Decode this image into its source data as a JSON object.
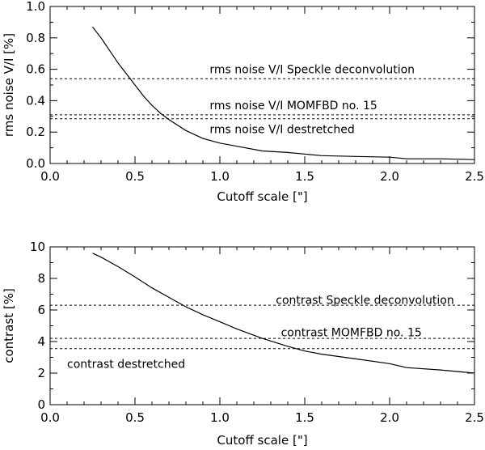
{
  "chart_data": [
    {
      "type": "line",
      "xlabel": "Cutoff scale [\"]",
      "ylabel": "rms noise V/I [%]",
      "xlim": [
        0.0,
        2.5
      ],
      "ylim": [
        0.0,
        1.0
      ],
      "xticks": [
        "0.0",
        "0.5",
        "1.0",
        "1.5",
        "2.0",
        "2.5"
      ],
      "yticks": [
        "0.0",
        "0.2",
        "0.4",
        "0.6",
        "0.8",
        "1.0"
      ],
      "series": [
        {
          "style": "solid",
          "x": [
            0.25,
            0.3,
            0.35,
            0.4,
            0.45,
            0.5,
            0.55,
            0.6,
            0.65,
            0.7,
            0.8,
            0.9,
            1.0,
            1.1,
            1.25,
            1.4,
            1.6,
            1.8,
            2.0,
            2.1,
            2.3,
            2.5
          ],
          "y": [
            0.87,
            0.8,
            0.72,
            0.64,
            0.57,
            0.5,
            0.43,
            0.37,
            0.32,
            0.28,
            0.21,
            0.16,
            0.13,
            0.11,
            0.08,
            0.07,
            0.05,
            0.045,
            0.04,
            0.03,
            0.03,
            0.025
          ]
        }
      ],
      "reference_lines": [
        {
          "y": 0.54,
          "label": "rms noise V/I Speckle deconvolution",
          "label_x": 0.94
        },
        {
          "y": 0.31,
          "label": "rms noise V/I MOMFBD no. 15",
          "label_x": 0.94
        },
        {
          "y": 0.285,
          "label": "rms noise V/I destretched",
          "label_x": 0.94
        }
      ],
      "ref_label_positions": {
        "y_above": [
          0.6,
          0.37
        ],
        "y_below": [
          0.22
        ]
      }
    },
    {
      "type": "line",
      "xlabel": "Cutoff scale [\"]",
      "ylabel": "contrast [%]",
      "xlim": [
        0.0,
        2.5
      ],
      "ylim": [
        0.0,
        10.0
      ],
      "xticks": [
        "0.0",
        "0.5",
        "1.0",
        "1.5",
        "2.0",
        "2.5"
      ],
      "yticks": [
        "0",
        "2",
        "4",
        "6",
        "8",
        "10"
      ],
      "series": [
        {
          "style": "solid",
          "x": [
            0.25,
            0.3,
            0.4,
            0.5,
            0.6,
            0.7,
            0.8,
            0.9,
            1.0,
            1.1,
            1.25,
            1.4,
            1.5,
            1.6,
            1.8,
            2.0,
            2.1,
            2.3,
            2.5
          ],
          "y": [
            9.6,
            9.35,
            8.75,
            8.1,
            7.4,
            6.8,
            6.2,
            5.7,
            5.25,
            4.8,
            4.2,
            3.7,
            3.4,
            3.2,
            2.9,
            2.6,
            2.35,
            2.2,
            2.0
          ]
        }
      ],
      "reference_lines": [
        {
          "y": 6.3,
          "label": "contrast Speckle deconvolution",
          "label_x": 1.33
        },
        {
          "y": 4.2,
          "label": "contrast MOMFBD no. 15",
          "label_x": 1.36
        },
        {
          "y": 3.55,
          "label": "contrast destretched",
          "label_x": 0.1
        }
      ],
      "ref_label_positions": {
        "y_above": [
          6.65,
          4.6
        ],
        "y_below": [
          2.6
        ]
      }
    }
  ]
}
